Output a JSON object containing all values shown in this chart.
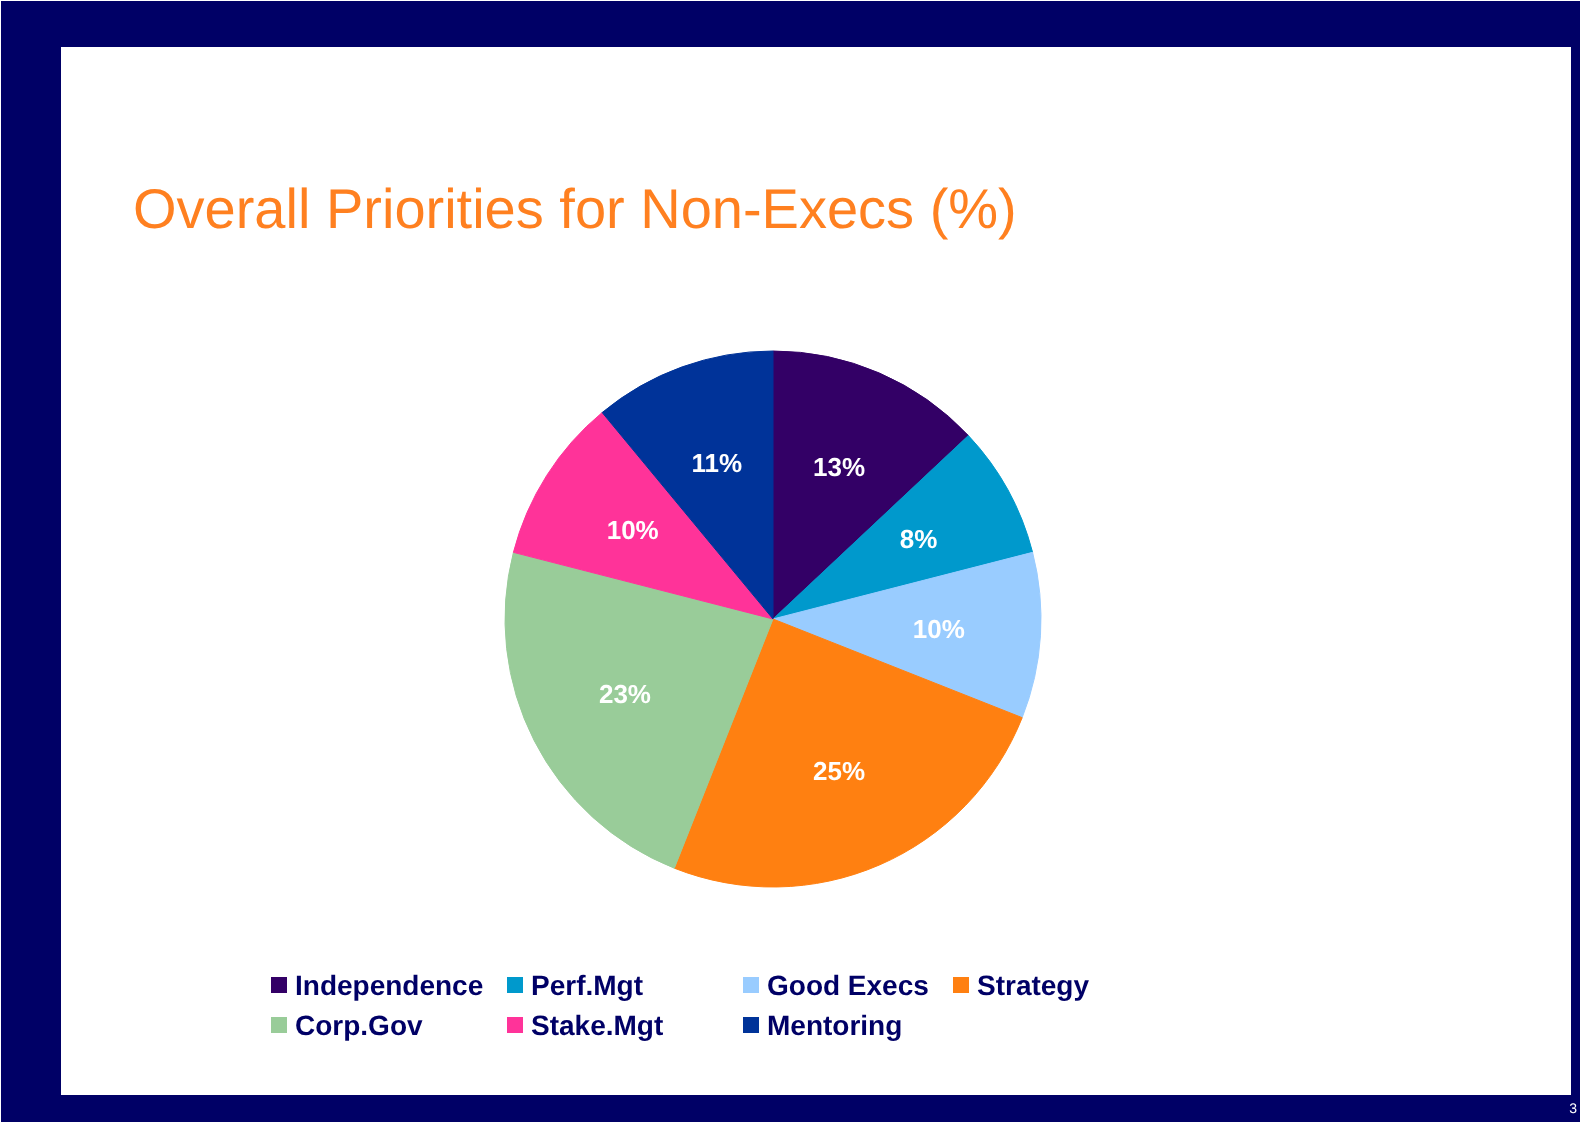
{
  "chart_data": {
    "type": "pie",
    "title": "Overall Priorities for Non-Execs (%)",
    "categories": [
      "Independence",
      "Perf.Mgt",
      "Good Execs",
      "Strategy",
      "Corp.Gov",
      "Stake.Mgt",
      "Mentoring"
    ],
    "values": [
      13,
      8,
      10,
      25,
      23,
      10,
      11
    ],
    "colors": [
      "#330066",
      "#0099cc",
      "#99ccff",
      "#ff8011",
      "#99cc99",
      "#ff3399",
      "#003399"
    ],
    "value_labels": [
      "13%",
      "8%",
      "10%",
      "25%",
      "23%",
      "10%",
      "11%"
    ],
    "legend": "bottom",
    "annotations": [
      "3"
    ]
  }
}
